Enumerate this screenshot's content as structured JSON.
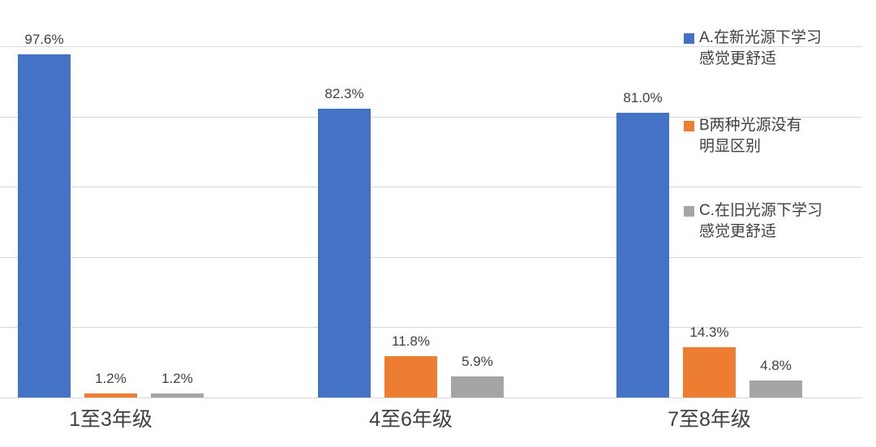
{
  "chart_data": {
    "type": "bar",
    "title": "",
    "xlabel": "",
    "ylabel": "",
    "categories": [
      "1至3年级",
      "4至6年级",
      "7至8年级"
    ],
    "series": [
      {
        "key": "A",
        "name": "A.在新光源下学习感觉更舒适",
        "legend_lines": [
          "A.在新光源下学习",
          "感觉更舒适"
        ],
        "color": "#4472C4",
        "values": [
          97.6,
          82.3,
          81.0
        ],
        "labels": [
          "97.6%",
          "82.3%",
          "81.0%"
        ]
      },
      {
        "key": "B",
        "name": "B两种光源没有明显区别",
        "legend_lines": [
          "B两种光源没有",
          "明显区别"
        ],
        "color": "#ED7D31",
        "values": [
          1.2,
          11.8,
          14.3
        ],
        "labels": [
          "1.2%",
          "11.8%",
          "14.3%"
        ]
      },
      {
        "key": "C",
        "name": "C.在旧光源下学习感觉更舒适",
        "legend_lines": [
          "C.在旧光源下学习",
          "感觉更舒适"
        ],
        "color": "#A5A5A5",
        "values": [
          1.2,
          5.9,
          4.8
        ],
        "labels": [
          "1.2%",
          "5.9%",
          "4.8%"
        ]
      }
    ],
    "ylim": [
      0,
      100
    ],
    "grid": true,
    "gridline_interval": 20,
    "y_tick_labels_visible": false,
    "legend_position": "right"
  },
  "colors": {
    "background": "#FFFFFF",
    "gridline": "#D9D9D9",
    "label_text": "#404040",
    "category_text": "#3F3F3F",
    "legend_text": "#404040"
  }
}
